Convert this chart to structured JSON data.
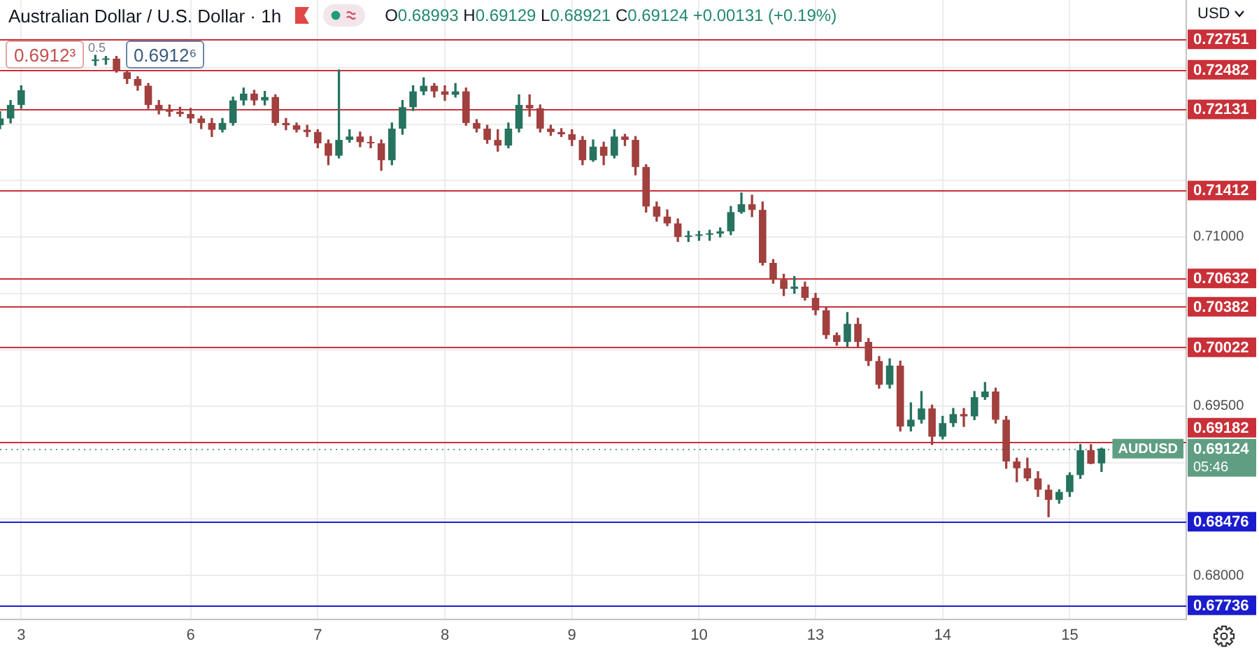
{
  "chart_data": {
    "type": "candlestick",
    "title": "Australian Dollar / U.S. Dollar · 1h",
    "subtitle": "O0.68993 H0.69129 L0.68921 C0.69124 +0.00131 (+0.19%)",
    "ylabel": "USD",
    "annotations": [
      "0.6912³",
      "0.5",
      "0.6912⁶",
      {
        "text": "AUDUSD",
        "y": 0.69124
      },
      "05:46"
    ],
    "categories": [
      null,
      null,
      "3",
      null,
      null,
      null,
      null,
      null,
      null,
      null,
      null,
      null,
      null,
      null,
      null,
      null,
      null,
      null,
      "6",
      null,
      null,
      null,
      null,
      null,
      null,
      null,
      null,
      null,
      null,
      null,
      "7",
      null,
      null,
      null,
      null,
      null,
      null,
      null,
      null,
      null,
      null,
      null,
      "8",
      null,
      null,
      null,
      null,
      null,
      null,
      null,
      null,
      null,
      null,
      null,
      "9",
      null,
      null,
      null,
      null,
      null,
      null,
      null,
      null,
      null,
      null,
      null,
      "10",
      null,
      null,
      null,
      null,
      null,
      null,
      null,
      null,
      null,
      null,
      "13",
      null,
      null,
      null,
      null,
      null,
      null,
      null,
      null,
      null,
      null,
      null,
      "14",
      null,
      null,
      null,
      null,
      null,
      null,
      null,
      null,
      null,
      null,
      null,
      "15",
      null,
      null,
      null,
      null,
      null,
      null,
      null,
      null,
      null,
      null,
      null
    ],
    "ohlc": [
      [
        0.7199,
        0.7211,
        0.7196,
        0.7205
      ],
      [
        0.7205,
        0.7221,
        0.7201,
        0.7217
      ],
      [
        0.7217,
        0.7234,
        0.7214,
        0.723
      ],
      null,
      null,
      null,
      null,
      null,
      null,
      [
        0.7256,
        0.7261,
        0.7252,
        0.7257
      ],
      [
        0.7257,
        0.726,
        0.7253,
        0.7258
      ],
      [
        0.7258,
        0.726,
        0.7246,
        0.7248
      ],
      [
        0.7246,
        0.7247,
        0.7236,
        0.724
      ],
      [
        0.724,
        0.7242,
        0.723,
        0.7234
      ],
      [
        0.7234,
        0.7236,
        0.7214,
        0.7217
      ],
      [
        0.7217,
        0.7221,
        0.7209,
        0.7212
      ],
      [
        0.7212,
        0.7217,
        0.7207,
        0.7211
      ],
      [
        0.7211,
        0.7215,
        0.7207,
        0.7209
      ],
      [
        0.7209,
        0.7214,
        0.7201,
        0.7205
      ],
      [
        0.7205,
        0.7207,
        0.7196,
        0.7201
      ],
      [
        0.7201,
        0.7205,
        0.7189,
        0.7195
      ],
      [
        0.7195,
        0.7205,
        0.7193,
        0.7201
      ],
      [
        0.7201,
        0.7224,
        0.7199,
        0.7221
      ],
      [
        0.7221,
        0.7232,
        0.7217,
        0.7227
      ],
      [
        0.7227,
        0.723,
        0.7217,
        0.7221
      ],
      [
        0.7221,
        0.7229,
        0.7217,
        0.7224
      ],
      [
        0.7224,
        0.7226,
        0.7199,
        0.7201
      ],
      [
        0.7201,
        0.7205,
        0.7195,
        0.7199
      ],
      [
        0.7199,
        0.7201,
        0.7193,
        0.7195
      ],
      [
        0.7195,
        0.7199,
        0.7189,
        0.7193
      ],
      [
        0.7193,
        0.7195,
        0.7179,
        0.7183
      ],
      [
        0.7183,
        0.7186,
        0.7164,
        0.7172
      ],
      [
        0.7172,
        0.7248,
        0.717,
        0.7186
      ],
      [
        0.7186,
        0.7195,
        0.7184,
        0.7189
      ],
      [
        0.7189,
        0.7193,
        0.718,
        0.7184
      ],
      [
        0.7184,
        0.7189,
        0.7179,
        0.7183
      ],
      [
        0.7183,
        0.7186,
        0.7159,
        0.7168
      ],
      [
        0.7168,
        0.7201,
        0.7164,
        0.7196
      ],
      [
        0.7196,
        0.7221,
        0.7191,
        0.7215
      ],
      [
        0.7215,
        0.7234,
        0.7212,
        0.7229
      ],
      [
        0.7229,
        0.7241,
        0.7226,
        0.7234
      ],
      [
        0.7234,
        0.7236,
        0.7224,
        0.7229
      ],
      [
        0.7229,
        0.7234,
        0.7221,
        0.7226
      ],
      [
        0.7226,
        0.7236,
        0.7224,
        0.7229
      ],
      [
        0.7229,
        0.7232,
        0.7199,
        0.7201
      ],
      [
        0.7201,
        0.7204,
        0.7193,
        0.7196
      ],
      [
        0.7196,
        0.7199,
        0.7183,
        0.7186
      ],
      [
        0.7186,
        0.7195,
        0.7176,
        0.7181
      ],
      [
        0.7181,
        0.7201,
        0.7179,
        0.7196
      ],
      [
        0.7196,
        0.7226,
        0.7193,
        0.7217
      ],
      [
        0.7217,
        0.7226,
        0.7207,
        0.7214
      ],
      [
        0.7214,
        0.7217,
        0.7193,
        0.7196
      ],
      [
        0.7196,
        0.7199,
        0.719,
        0.7193
      ],
      [
        0.7193,
        0.7196,
        0.7189,
        0.7191
      ],
      [
        0.7191,
        0.7195,
        0.7181,
        0.7186
      ],
      [
        0.7186,
        0.7189,
        0.7164,
        0.7168
      ],
      [
        0.7168,
        0.7186,
        0.7167,
        0.718
      ],
      [
        0.718,
        0.7184,
        0.7164,
        0.7172
      ],
      [
        0.7172,
        0.7195,
        0.717,
        0.7189
      ],
      [
        0.7189,
        0.7191,
        0.7181,
        0.7186
      ],
      [
        0.7186,
        0.7189,
        0.7155,
        0.7162
      ],
      [
        0.7162,
        0.7164,
        0.7122,
        0.7127
      ],
      [
        0.7127,
        0.7131,
        0.7114,
        0.7118
      ],
      [
        0.7118,
        0.7124,
        0.711,
        0.7112
      ],
      [
        0.7112,
        0.7116,
        0.7096,
        0.71
      ],
      [
        0.71,
        0.7105,
        0.7096,
        0.7101
      ],
      [
        0.7101,
        0.7105,
        0.7097,
        0.7102
      ],
      [
        0.7102,
        0.7106,
        0.7097,
        0.7103
      ],
      [
        0.7103,
        0.7108,
        0.71,
        0.7105
      ],
      [
        0.7105,
        0.7127,
        0.7102,
        0.7122
      ],
      [
        0.7122,
        0.7139,
        0.7121,
        0.7129
      ],
      [
        0.7129,
        0.7137,
        0.7118,
        0.7124
      ],
      [
        0.7124,
        0.7131,
        0.7075,
        0.7077
      ],
      [
        0.7077,
        0.708,
        0.7059,
        0.7062
      ],
      [
        0.7062,
        0.7067,
        0.7048,
        0.7054
      ],
      [
        0.7054,
        0.7065,
        0.705,
        0.7056
      ],
      [
        0.7056,
        0.706,
        0.7044,
        0.7046
      ],
      [
        0.7046,
        0.705,
        0.7031,
        0.7035
      ],
      [
        0.7035,
        0.7038,
        0.701,
        0.7013
      ],
      [
        0.7013,
        0.7015,
        0.7004,
        0.7007
      ],
      [
        0.7007,
        0.7033,
        0.7003,
        0.7023
      ],
      [
        0.7023,
        0.7028,
        0.7003,
        0.7007
      ],
      [
        0.7007,
        0.701,
        0.6986,
        0.699
      ],
      [
        0.699,
        0.6994,
        0.6966,
        0.6969
      ],
      [
        0.6969,
        0.6992,
        0.6966,
        0.6986
      ],
      [
        0.6986,
        0.699,
        0.6928,
        0.6932
      ],
      [
        0.6932,
        0.6953,
        0.6928,
        0.6938
      ],
      [
        0.6938,
        0.6963,
        0.6935,
        0.6948
      ],
      [
        0.6948,
        0.6951,
        0.6916,
        0.6923
      ],
      [
        0.6923,
        0.6941,
        0.6921,
        0.6935
      ],
      [
        0.6935,
        0.6948,
        0.6932,
        0.6943
      ],
      [
        0.6943,
        0.6948,
        0.6932,
        0.6941
      ],
      [
        0.6941,
        0.6963,
        0.6938,
        0.6958
      ],
      [
        0.6958,
        0.6971,
        0.6956,
        0.6963
      ],
      [
        0.6963,
        0.6966,
        0.6935,
        0.6938
      ],
      [
        0.6938,
        0.6941,
        0.6895,
        0.6901
      ],
      [
        0.6901,
        0.6904,
        0.6883,
        0.6895
      ],
      [
        0.6895,
        0.6904,
        0.6884,
        0.6886
      ],
      [
        0.6886,
        0.6892,
        0.687,
        0.6876
      ],
      [
        0.6876,
        0.688,
        0.6852,
        0.6867
      ],
      [
        0.6867,
        0.6876,
        0.6864,
        0.6874
      ],
      [
        0.6874,
        0.6891,
        0.687,
        0.6889
      ],
      [
        0.6889,
        0.6916,
        0.6886,
        0.6911
      ],
      [
        0.6911,
        0.6916,
        0.6899,
        0.6899
      ],
      [
        0.68993,
        0.69129,
        0.68921,
        0.69124
      ],
      null,
      null,
      null,
      null,
      null,
      null,
      null,
      null
    ],
    "colors": [
      "#26735f",
      "#26735f",
      "#26735f",
      null,
      null,
      null,
      null,
      null,
      null,
      "#26735f",
      "#26735f",
      "#a1403e",
      "#a1403e",
      "#a1403e",
      "#a1403e",
      "#a1403e",
      "#a1403e",
      "#a1403e",
      "#a1403e",
      "#a1403e",
      "#a1403e",
      "#26735f",
      "#26735f",
      "#26735f",
      "#a1403e",
      "#26735f",
      "#a1403e",
      "#a1403e",
      "#a1403e",
      "#a1403e",
      "#a1403e",
      "#a1403e",
      "#26735f",
      "#26735f",
      "#a1403e",
      "#a1403e",
      "#a1403e",
      "#26735f",
      "#26735f",
      "#26735f",
      "#26735f",
      "#a1403e",
      "#a1403e",
      "#26735f",
      "#a1403e",
      "#a1403e",
      "#a1403e",
      "#a1403e",
      "#26735f",
      "#26735f",
      "#a1403e",
      "#a1403e",
      "#a1403e",
      "#a1403e",
      "#a1403e",
      "#a1403e",
      "#26735f",
      "#a1403e",
      "#26735f",
      "#a1403e",
      "#a1403e",
      "#a1403e",
      "#a1403e",
      "#a1403e",
      "#a1403e",
      "#26735f",
      "#26735f",
      "#26735f",
      "#26735f",
      "#26735f",
      "#26735f",
      "#a1403e",
      "#a1403e",
      "#a1403e",
      "#a1403e",
      "#26735f",
      "#a1403e",
      "#a1403e",
      "#a1403e",
      "#a1403e",
      "#26735f",
      "#a1403e",
      "#a1403e",
      "#a1403e",
      "#26735f",
      "#a1403e",
      "#26735f",
      "#26735f",
      "#a1403e",
      "#26735f",
      "#26735f",
      "#a1403e",
      "#26735f",
      "#26735f",
      "#a1403e",
      "#a1403e",
      "#a1403e",
      "#a1403e",
      "#a1403e",
      "#a1403e",
      "#26735f",
      "#26735f",
      "#26735f",
      "#a1403e",
      "#26735f",
      null,
      null,
      null,
      null,
      null,
      null,
      null,
      null
    ],
    "ylim": [
      0.6761,
      0.731
    ],
    "yticks": [
      {
        "value": 0.68,
        "label": "0.68000"
      },
      {
        "value": 0.685,
        "label": null
      },
      {
        "value": 0.69,
        "label": null
      },
      {
        "value": 0.695,
        "label": "0.69500"
      },
      {
        "value": 0.7,
        "label": null
      },
      {
        "value": 0.705,
        "label": null
      },
      {
        "value": 0.71,
        "label": "0.71000"
      },
      {
        "value": 0.715,
        "label": null
      },
      {
        "value": 0.72,
        "label": null
      },
      {
        "value": 0.725,
        "label": null
      }
    ],
    "grid": true,
    "ref_lines": [
      {
        "axis": "y",
        "value": 0.72751,
        "label": "0.72751",
        "color": "#c93038"
      },
      {
        "axis": "y",
        "value": 0.72482,
        "label": "0.72482",
        "color": "#c93038"
      },
      {
        "axis": "y",
        "value": 0.72131,
        "label": "0.72131",
        "color": "#c93038"
      },
      {
        "axis": "y",
        "value": 0.71412,
        "label": "0.71412",
        "color": "#c93038"
      },
      {
        "axis": "y",
        "value": 0.70632,
        "label": "0.70632",
        "color": "#c93038"
      },
      {
        "axis": "y",
        "value": 0.70382,
        "label": "0.70382",
        "color": "#c93038"
      },
      {
        "axis": "y",
        "value": 0.70022,
        "label": "0.70022",
        "color": "#c93038"
      },
      {
        "axis": "y",
        "value": 0.69182,
        "label": "0.69182",
        "color": "#c93038"
      },
      {
        "axis": "y",
        "value": 0.68476,
        "label": "0.68476",
        "color": "#1c1ccf"
      },
      {
        "axis": "y",
        "value": 0.67736,
        "label": "0.67736",
        "color": "#1c1ccf"
      },
      {
        "axis": "y",
        "value": 0.69124,
        "label": "0.69124",
        "color": "#5f9e83",
        "line_style": "dotted"
      }
    ]
  }
}
